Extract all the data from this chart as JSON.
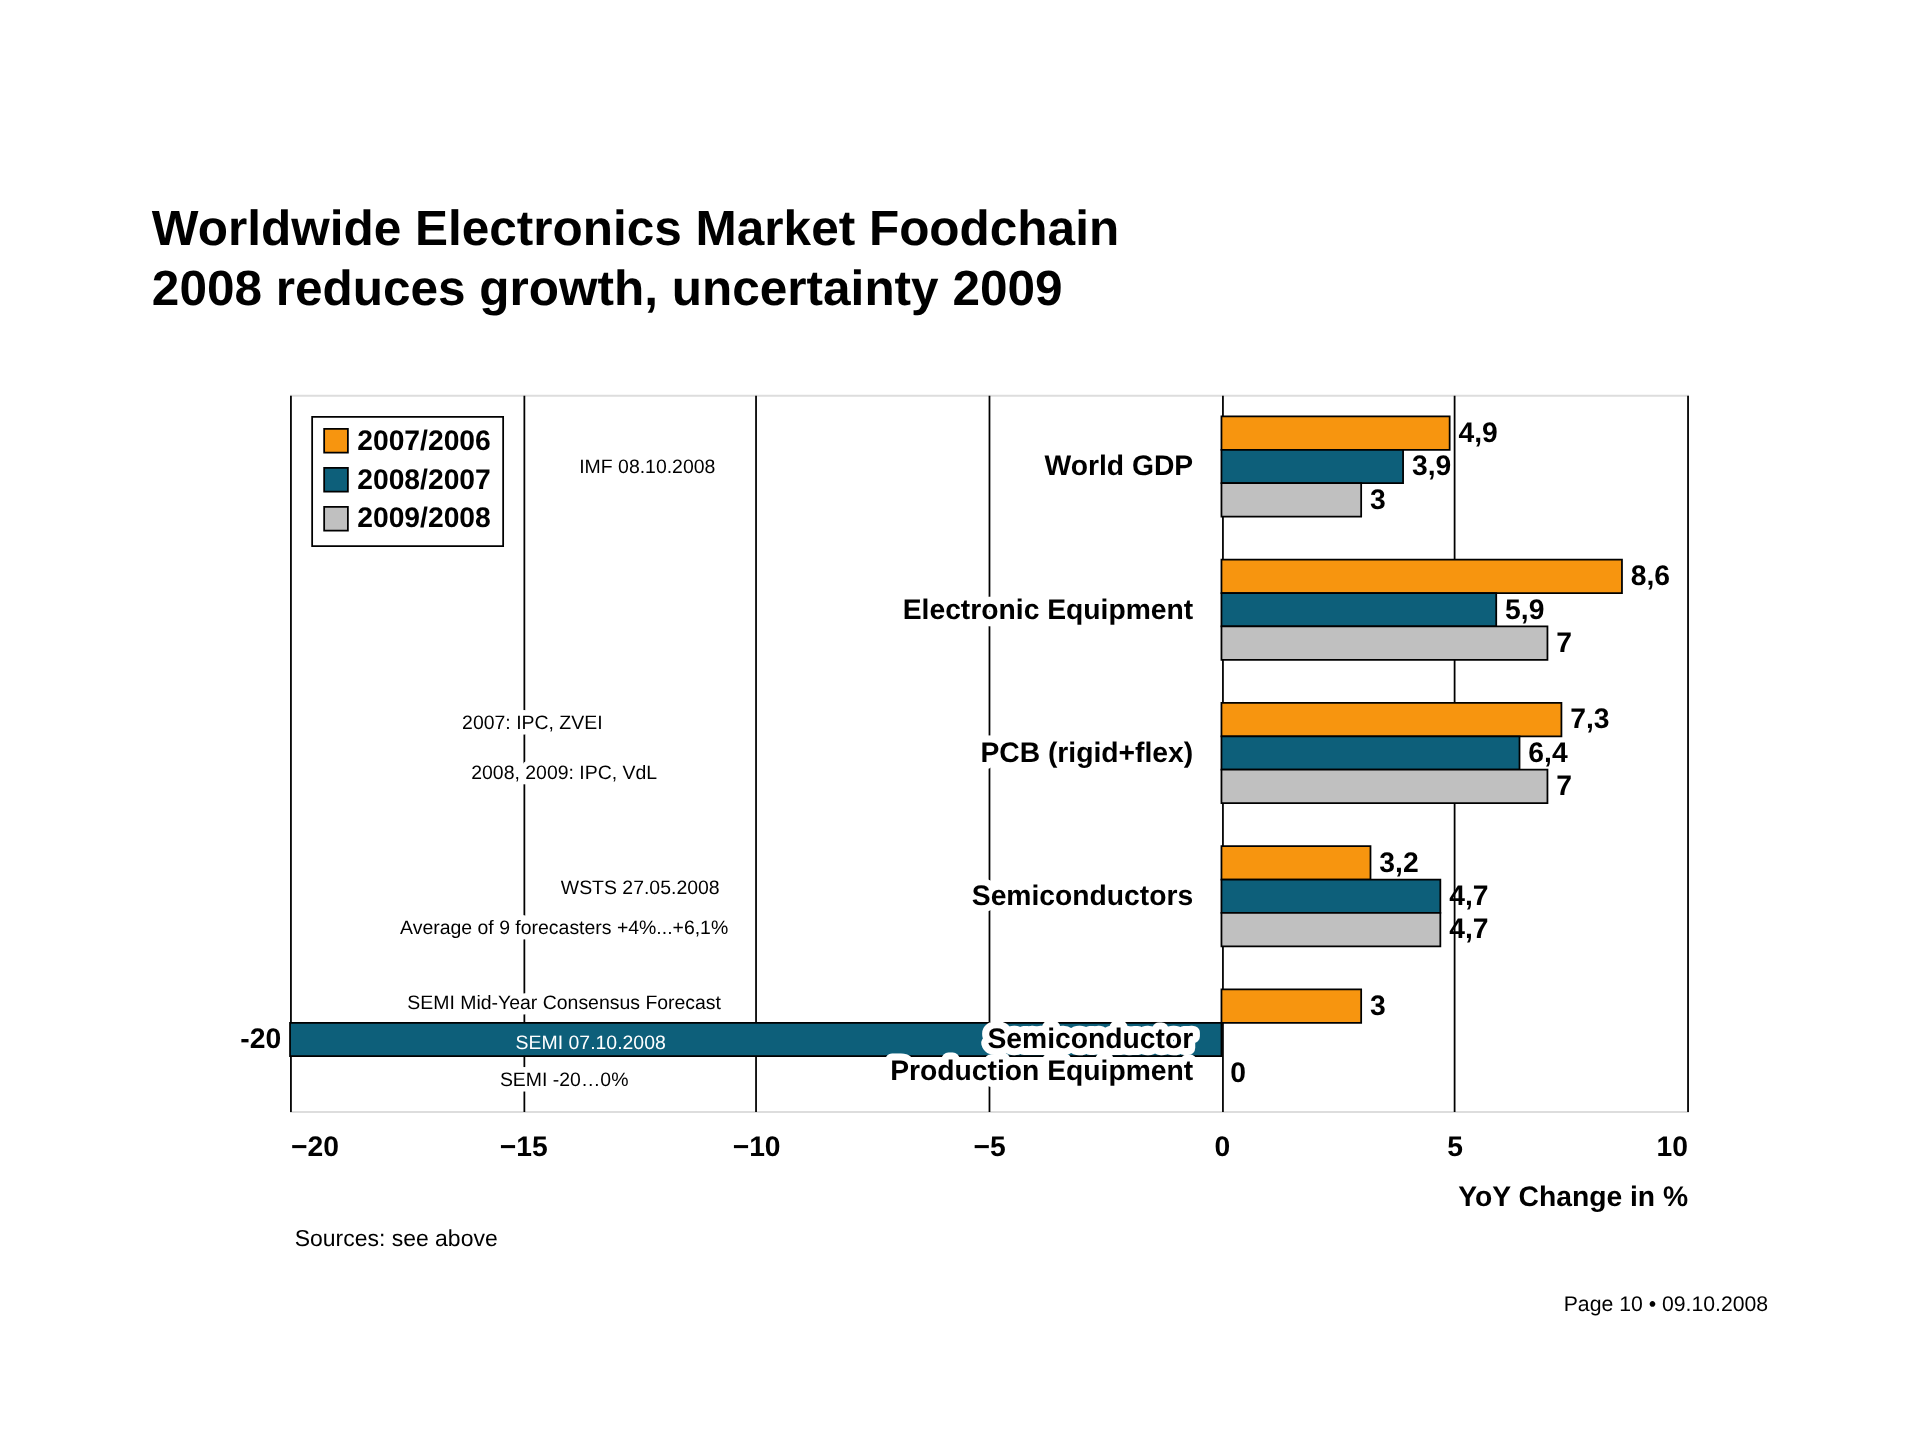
{
  "chart_data": {
    "type": "bar",
    "orientation": "horizontal",
    "title": "Worldwide Electronics Market Foodchain\n2008 reduces growth, uncertainty 2009",
    "xlabel": "YoY Change in %",
    "categories": [
      "World GDP",
      "Electronic Equipment",
      "PCB (rigid+flex)",
      "Semiconductors",
      "Semiconductor\nProduction Equipment"
    ],
    "series": [
      {
        "name": "2007/2006",
        "color": "#f7950f",
        "values": [
          4.9,
          8.6,
          7.3,
          3.2,
          3
        ],
        "value_labels": [
          "4,9",
          "8,6",
          "7,3",
          "3,2",
          "3"
        ]
      },
      {
        "name": "2008/2007",
        "color": "#0d5f7a",
        "values": [
          3.9,
          5.9,
          6.4,
          4.7,
          -20
        ],
        "value_labels": [
          "3,9",
          "5,9",
          "6,4",
          "4,7",
          "-20"
        ]
      },
      {
        "name": "2009/2008",
        "color": "#c0c0c0",
        "values": [
          3,
          7,
          7,
          4.7,
          0
        ],
        "value_labels": [
          "3",
          "7",
          "7",
          "4,7",
          "0"
        ]
      }
    ],
    "xlim": [
      -20,
      10
    ],
    "xticks": [
      -20,
      -15,
      -10,
      -5,
      0,
      5,
      10
    ],
    "grid": "x",
    "legend": "top left",
    "annotations": [
      "IMF 08.10.2008",
      "2007: IPC, ZVEI",
      "2008, 2009: IPC, VdL",
      "WSTS 27.05.2008",
      "Average of 9 forecasters +4%...+6,1%",
      "SEMI Mid-Year Consensus Forecast",
      "SEMI 07.10.2008",
      "SEMI -20…0%",
      "Sources: see above",
      "Page 10 • 09.10.2008"
    ]
  }
}
